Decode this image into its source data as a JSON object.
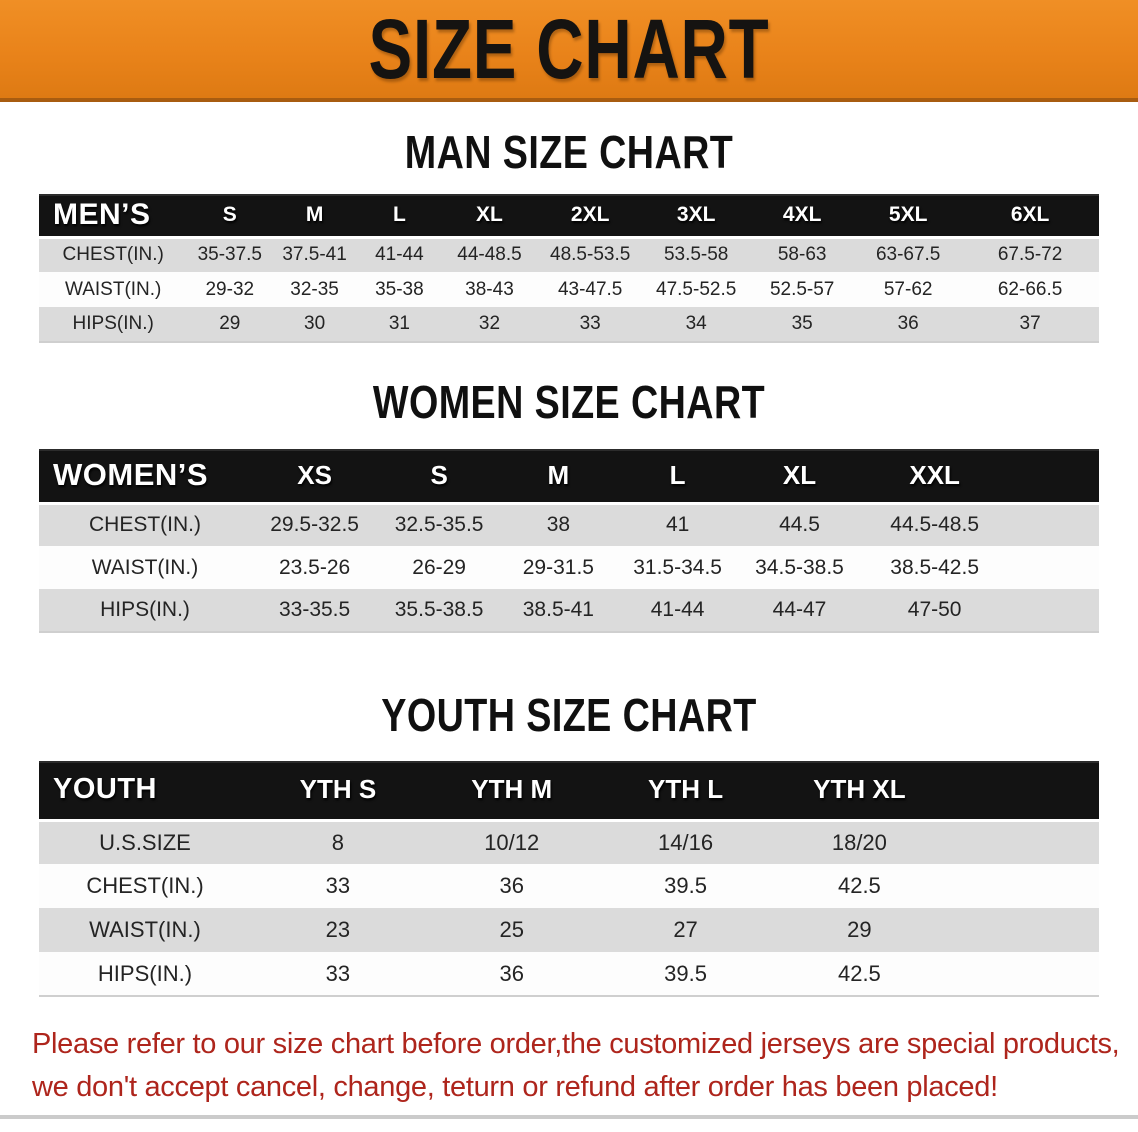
{
  "colors": {
    "banner_orange": "#E9831A",
    "banner_edge": "#A85C10",
    "header_black": "#131313",
    "row_gray": "#DBDBDB",
    "note_red": "#AE251C"
  },
  "banner": {
    "title": "SIZE CHART"
  },
  "sections": [
    {
      "id": "men",
      "heading": "MAN SIZE CHART",
      "corner": "MEN’S",
      "columns": [
        "S",
        "M",
        "L",
        "XL",
        "2XL",
        "3XL",
        "4XL",
        "5XL",
        "6XL"
      ],
      "rows": [
        {
          "label": "CHEST(IN.)",
          "values": [
            "35-37.5",
            "37.5-41",
            "41-44",
            "44-48.5",
            "48.5-53.5",
            "53.5-58",
            "58-63",
            "63-67.5",
            "67.5-72"
          ]
        },
        {
          "label": "WAIST(IN.)",
          "values": [
            "29-32",
            "32-35",
            "35-38",
            "38-43",
            "43-47.5",
            "47.5-52.5",
            "52.5-57",
            "57-62",
            "62-66.5"
          ]
        },
        {
          "label": "HIPS(IN.)",
          "values": [
            "29",
            "30",
            "31",
            "32",
            "33",
            "34",
            "35",
            "36",
            "37"
          ]
        }
      ]
    },
    {
      "id": "women",
      "heading": "WOMEN SIZE CHART",
      "corner": "WOMEN’S",
      "columns": [
        "XS",
        "S",
        "M",
        "L",
        "XL",
        "XXL"
      ],
      "rows": [
        {
          "label": "CHEST(IN.)",
          "values": [
            "29.5-32.5",
            "32.5-35.5",
            "38",
            "41",
            "44.5",
            "44.5-48.5"
          ]
        },
        {
          "label": "WAIST(IN.)",
          "values": [
            "23.5-26",
            "26-29",
            "29-31.5",
            "31.5-34.5",
            "34.5-38.5",
            "38.5-42.5"
          ]
        },
        {
          "label": "HIPS(IN.)",
          "values": [
            "33-35.5",
            "35.5-38.5",
            "38.5-41",
            "41-44",
            "44-47",
            "47-50"
          ]
        }
      ]
    },
    {
      "id": "youth",
      "heading": "YOUTH SIZE CHART",
      "corner": "YOUTH",
      "columns": [
        "YTH S",
        "YTH M",
        "YTH L",
        "YTH XL"
      ],
      "rows": [
        {
          "label": "U.S.SIZE",
          "values": [
            "8",
            "10/12",
            "14/16",
            "18/20"
          ]
        },
        {
          "label": "CHEST(IN.)",
          "values": [
            "33",
            "36",
            "39.5",
            "42.5"
          ]
        },
        {
          "label": "WAIST(IN.)",
          "values": [
            "23",
            "25",
            "27",
            "29"
          ]
        },
        {
          "label": "HIPS(IN.)",
          "values": [
            "33",
            "36",
            "39.5",
            "42.5"
          ]
        }
      ]
    }
  ],
  "note": {
    "lines": [
      "Please refer to our size chart before order,the customized jerseys are special products,",
      "we don't accept cancel, change, teturn or refund after order has been placed!"
    ]
  }
}
